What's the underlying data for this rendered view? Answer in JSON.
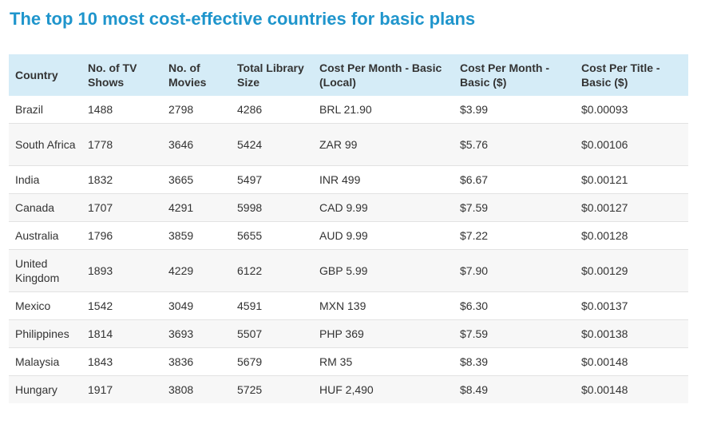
{
  "title": "The top 10 most cost-effective countries for basic plans",
  "table": {
    "headers": [
      "Country",
      "No. of TV Shows",
      "No. of Movies",
      "Total Library Size",
      "Cost Per Month - Basic (Local)",
      "Cost Per Month - Basic ($)",
      "Cost Per Title - Basic ($)"
    ],
    "rows": [
      [
        "Brazil",
        "1488",
        "2798",
        "4286",
        "BRL 21.90",
        "$3.99",
        "$0.00093"
      ],
      [
        "South Africa",
        "1778",
        "3646",
        "5424",
        "ZAR 99",
        "$5.76",
        "$0.00106"
      ],
      [
        "India",
        "1832",
        "3665",
        "5497",
        "INR 499",
        "$6.67",
        "$0.00121"
      ],
      [
        "Canada",
        "1707",
        "4291",
        "5998",
        "CAD 9.99",
        "$7.59",
        "$0.00127"
      ],
      [
        "Australia",
        "1796",
        "3859",
        "5655",
        "AUD 9.99",
        "$7.22",
        "$0.00128"
      ],
      [
        "United Kingdom",
        "1893",
        "4229",
        "6122",
        "GBP 5.99",
        "$7.90",
        "$0.00129"
      ],
      [
        "Mexico",
        "1542",
        "3049",
        "4591",
        "MXN 139",
        "$6.30",
        "$0.00137"
      ],
      [
        "Philippines",
        "1814",
        "3693",
        "5507",
        "PHP 369",
        "$7.59",
        "$0.00138"
      ],
      [
        "Malaysia",
        "1843",
        "3836",
        "5679",
        "RM 35",
        "$8.39",
        "$0.00148"
      ],
      [
        "Hungary",
        "1917",
        "3808",
        "5725",
        "HUF 2,490",
        "$8.49",
        "$0.00148"
      ]
    ]
  }
}
